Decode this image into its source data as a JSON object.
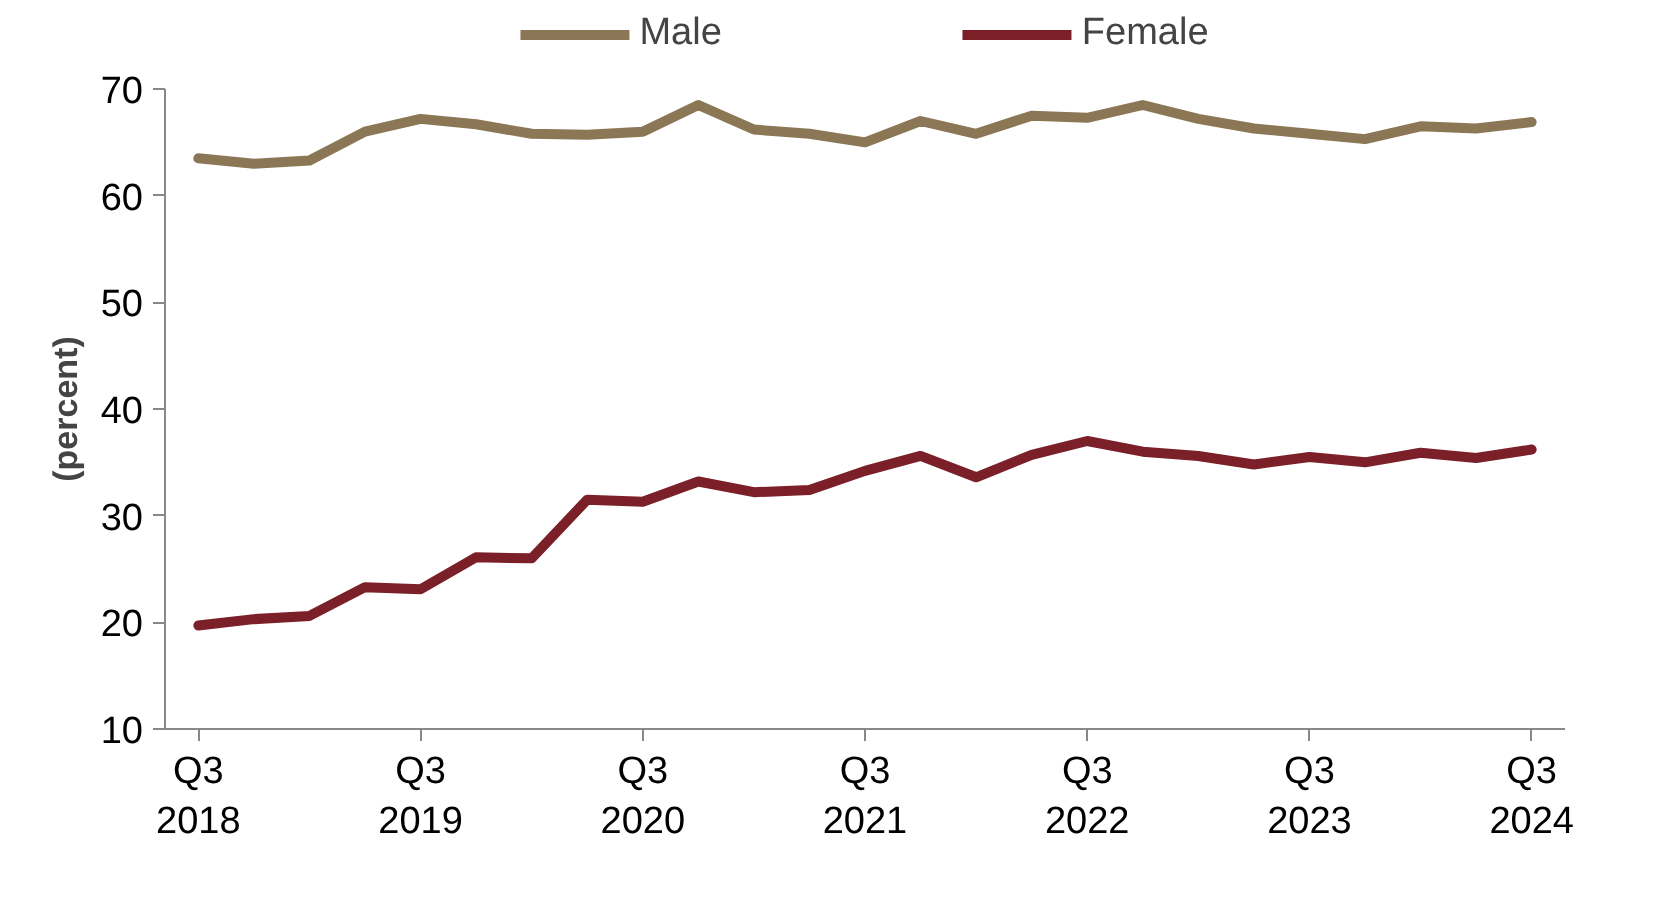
{
  "chart_data": {
    "type": "line",
    "ylabel": "(percent)",
    "categories": [
      "Q3\n2018",
      null,
      null,
      null,
      "Q3\n2019",
      null,
      null,
      null,
      "Q3\n2020",
      null,
      null,
      null,
      "Q3\n2021",
      null,
      null,
      null,
      "Q3\n2022",
      null,
      null,
      null,
      "Q3\n2023",
      null,
      null,
      null,
      "Q3\n2024"
    ],
    "series": [
      {
        "name": "Male",
        "color": "#8b7755",
        "values": [
          63.5,
          63.0,
          63.3,
          66.0,
          67.2,
          66.7,
          65.8,
          65.7,
          66.0,
          68.5,
          66.2,
          65.8,
          65.0,
          67.0,
          65.8,
          67.5,
          67.3,
          68.5,
          67.2,
          66.3,
          65.8,
          65.3,
          66.5,
          66.3,
          66.9
        ]
      },
      {
        "name": "Female",
        "color": "#7b1f28",
        "values": [
          19.7,
          20.3,
          20.6,
          23.3,
          23.1,
          26.1,
          26.0,
          31.5,
          31.3,
          33.2,
          32.2,
          32.4,
          34.2,
          35.6,
          33.6,
          35.7,
          37.0,
          36.0,
          35.6,
          34.8,
          35.5,
          35.0,
          35.9,
          35.4,
          36.2
        ]
      }
    ],
    "ylim": [
      10,
      70
    ],
    "yticks": [
      10,
      20,
      30,
      40,
      50,
      60,
      70
    ],
    "grid": false,
    "legend": "top",
    "line_style": "solid",
    "marker": "none"
  }
}
